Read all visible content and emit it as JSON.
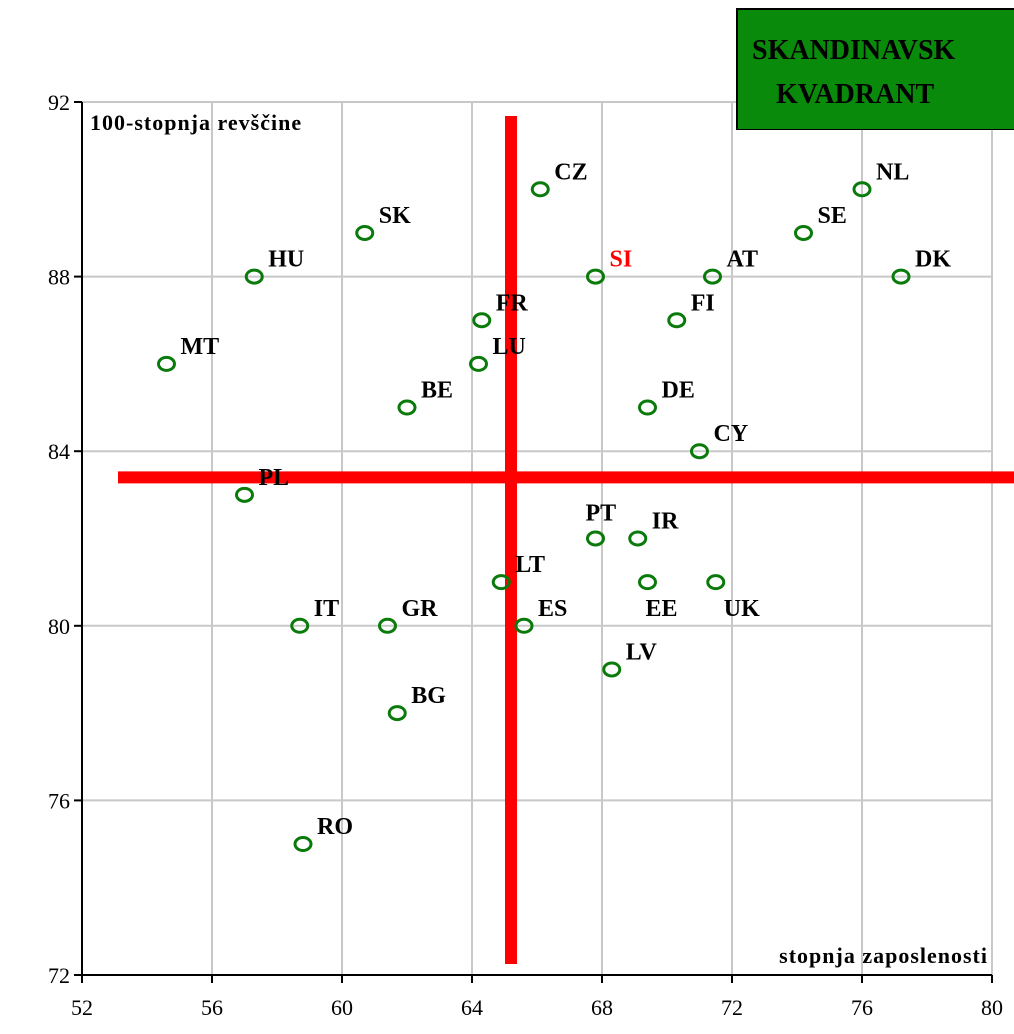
{
  "chart_data": {
    "type": "scatter",
    "ylabel": "100-stopnja revščine",
    "xlabel": "stopnja zaposlenosti",
    "xlim": [
      52,
      80
    ],
    "ylim": [
      72,
      92
    ],
    "xticks": [
      52,
      56,
      60,
      64,
      68,
      72,
      76,
      80
    ],
    "yticks": [
      72,
      76,
      80,
      84,
      88,
      92
    ],
    "grid": true,
    "colors": {
      "points": "#0a7a0a",
      "highlight": "#ff0000",
      "crosshair": "#ff0000",
      "box": "#0a8a0a"
    },
    "crosshair": {
      "x": 65.2,
      "y": 83.4
    },
    "quadrant_label": [
      "SKANDINAVSK",
      "KVADRANT"
    ],
    "points": [
      {
        "label": "NL",
        "x": 76.0,
        "y": 90.0
      },
      {
        "label": "CZ",
        "x": 66.1,
        "y": 90.0
      },
      {
        "label": "SK",
        "x": 60.7,
        "y": 89.0
      },
      {
        "label": "SE",
        "x": 74.2,
        "y": 89.0
      },
      {
        "label": "HU",
        "x": 57.3,
        "y": 88.0
      },
      {
        "label": "SI",
        "x": 67.8,
        "y": 88.0,
        "highlight": true
      },
      {
        "label": "AT",
        "x": 71.4,
        "y": 88.0
      },
      {
        "label": "DK",
        "x": 77.2,
        "y": 88.0
      },
      {
        "label": "FR",
        "x": 64.3,
        "y": 87.0
      },
      {
        "label": "FI",
        "x": 70.3,
        "y": 87.0
      },
      {
        "label": "MT",
        "x": 54.6,
        "y": 86.0
      },
      {
        "label": "LU",
        "x": 64.2,
        "y": 86.0
      },
      {
        "label": "BE",
        "x": 62.0,
        "y": 85.0
      },
      {
        "label": "DE",
        "x": 69.4,
        "y": 85.0
      },
      {
        "label": "CY",
        "x": 71.0,
        "y": 84.0
      },
      {
        "label": "PL",
        "x": 57.0,
        "y": 83.0
      },
      {
        "label": "PT",
        "x": 67.8,
        "y": 82.0
      },
      {
        "label": "IR",
        "x": 69.1,
        "y": 82.0
      },
      {
        "label": "LT",
        "x": 64.9,
        "y": 81.0
      },
      {
        "label": "EE",
        "x": 69.4,
        "y": 81.0
      },
      {
        "label": "UK",
        "x": 71.5,
        "y": 81.0
      },
      {
        "label": "IT",
        "x": 58.7,
        "y": 80.0
      },
      {
        "label": "GR",
        "x": 61.4,
        "y": 80.0
      },
      {
        "label": "ES",
        "x": 65.6,
        "y": 80.0
      },
      {
        "label": "LV",
        "x": 68.3,
        "y": 79.0
      },
      {
        "label": "BG",
        "x": 61.7,
        "y": 78.0
      },
      {
        "label": "RO",
        "x": 58.8,
        "y": 75.0
      }
    ]
  }
}
